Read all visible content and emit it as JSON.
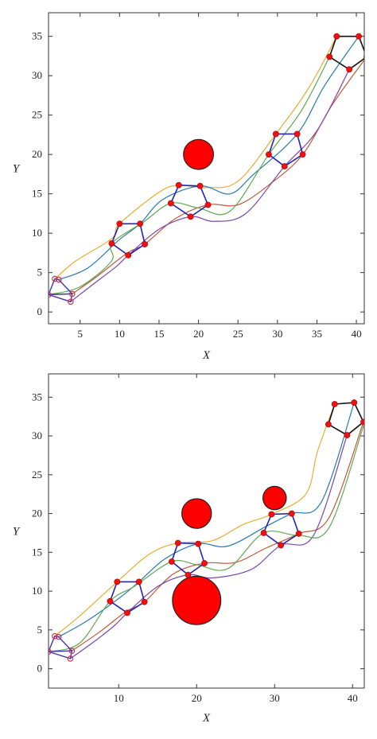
{
  "chart_data": [
    {
      "type": "line",
      "title": "",
      "xlabel": "X",
      "ylabel": "Y",
      "xlim": [
        1,
        41
      ],
      "ylim": [
        -1.5,
        38
      ],
      "x_ticks": [
        5,
        10,
        15,
        20,
        25,
        30,
        35,
        40
      ],
      "y_ticks": [
        0,
        5,
        10,
        15,
        20,
        25,
        30,
        35
      ],
      "grid": false,
      "obstacles": [
        {
          "cx": 20,
          "cy": 20,
          "r": 1.9
        }
      ],
      "start_positions": [
        [
          1.8,
          4.2
        ],
        [
          2.3,
          4.1
        ],
        [
          1,
          2.2
        ],
        [
          4,
          2.3
        ],
        [
          3.8,
          1.3
        ]
      ],
      "formations": [
        [
          [
            1.8,
            4.2
          ],
          [
            2.3,
            4.1
          ],
          [
            4,
            2.3
          ],
          [
            3.8,
            1.3
          ],
          [
            1,
            2.2
          ]
        ],
        [
          [
            10,
            11.2
          ],
          [
            12.6,
            11.2
          ],
          [
            13.2,
            8.6
          ],
          [
            11.1,
            7.2
          ],
          [
            9,
            8.7
          ]
        ],
        [
          [
            17.5,
            16.1
          ],
          [
            20.2,
            16
          ],
          [
            21.2,
            13.6
          ],
          [
            19,
            12.1
          ],
          [
            16.5,
            13.8
          ]
        ],
        [
          [
            29.8,
            22.6
          ],
          [
            32.5,
            22.6
          ],
          [
            33.2,
            20
          ],
          [
            30.9,
            18.5
          ],
          [
            28.9,
            20
          ]
        ],
        [
          [
            37.5,
            35
          ],
          [
            40.3,
            35
          ],
          [
            41.3,
            32.4
          ],
          [
            39.1,
            30.8
          ],
          [
            36.6,
            32.4
          ]
        ]
      ],
      "series": [
        {
          "color": "#e0b030",
          "values": [
            [
              1.8,
              4.2
            ],
            [
              4.5,
              6.5
            ],
            [
              9,
              9.3
            ],
            [
              10,
              11.2
            ],
            [
              15,
              15.2
            ],
            [
              17.5,
              16.1
            ],
            [
              21,
              15.8
            ],
            [
              25,
              16.6
            ],
            [
              29.8,
              22.6
            ],
            [
              34,
              28.5
            ],
            [
              37.5,
              35
            ]
          ]
        },
        {
          "color": "#2a7ab0",
          "values": [
            [
              2.3,
              4.1
            ],
            [
              6,
              5.6
            ],
            [
              10,
              9.2
            ],
            [
              12.6,
              11.2
            ],
            [
              15.5,
              14.3
            ],
            [
              20.2,
              16
            ],
            [
              24,
              15
            ],
            [
              27,
              17.5
            ],
            [
              32.5,
              22.6
            ],
            [
              36,
              28.8
            ],
            [
              40.3,
              35
            ]
          ]
        },
        {
          "color": "#c05a3a",
          "values": [
            [
              4,
              2.3
            ],
            [
              7,
              4.4
            ],
            [
              11,
              7.5
            ],
            [
              13.2,
              8.6
            ],
            [
              17,
              11.8
            ],
            [
              21.2,
              13.6
            ],
            [
              25,
              13.6
            ],
            [
              29,
              16.2
            ],
            [
              33.2,
              20
            ],
            [
              37,
              26.4
            ],
            [
              41.3,
              32.4
            ]
          ]
        },
        {
          "color": "#7a48a8",
          "values": [
            [
              3.8,
              1.3
            ],
            [
              6.5,
              3.4
            ],
            [
              9.5,
              5.7
            ],
            [
              11.1,
              7.2
            ],
            [
              15,
              10.5
            ],
            [
              19,
              12.1
            ],
            [
              22,
              11.5
            ],
            [
              26,
              12.5
            ],
            [
              30.9,
              18.5
            ],
            [
              35,
              23
            ],
            [
              39.1,
              30.8
            ]
          ]
        },
        {
          "color": "#60a850",
          "values": [
            [
              1,
              2.2
            ],
            [
              5,
              3.2
            ],
            [
              9,
              6.5
            ],
            [
              9,
              8.7
            ],
            [
              13,
              11.4
            ],
            [
              16.5,
              13.8
            ],
            [
              20,
              13.2
            ],
            [
              24,
              12.8
            ],
            [
              28.9,
              20
            ],
            [
              33,
              25.5
            ],
            [
              36.6,
              32.4
            ]
          ]
        }
      ]
    },
    {
      "type": "line",
      "title": "",
      "xlabel": "X",
      "ylabel": "Y",
      "xlim": [
        1,
        41.5
      ],
      "ylim": [
        -2.5,
        38
      ],
      "x_ticks": [
        10,
        20,
        30,
        40
      ],
      "y_ticks": [
        0,
        5,
        10,
        15,
        20,
        25,
        30,
        35
      ],
      "grid": false,
      "obstacles": [
        {
          "cx": 20,
          "cy": 20,
          "r": 1.9
        },
        {
          "cx": 30,
          "cy": 22,
          "r": 1.5
        },
        {
          "cx": 20,
          "cy": 8.8,
          "r": 3.1
        }
      ],
      "start_positions": [
        [
          1.8,
          4.2
        ],
        [
          2.3,
          4.1
        ],
        [
          1,
          2.2
        ],
        [
          4,
          2.3
        ],
        [
          3.8,
          1.3
        ]
      ],
      "formations": [
        [
          [
            1.8,
            4.2
          ],
          [
            2.3,
            4.1
          ],
          [
            4,
            2.3
          ],
          [
            3.8,
            1.3
          ],
          [
            1,
            2.2
          ]
        ],
        [
          [
            9.8,
            11.2
          ],
          [
            12.6,
            11.2
          ],
          [
            13.3,
            8.6
          ],
          [
            11.1,
            7.2
          ],
          [
            8.9,
            8.7
          ]
        ],
        [
          [
            17.6,
            16.2
          ],
          [
            20.2,
            16.1
          ],
          [
            21,
            13.6
          ],
          [
            18.9,
            12.1
          ],
          [
            16.8,
            13.8
          ]
        ],
        [
          [
            29.6,
            19.9
          ],
          [
            32.2,
            20
          ],
          [
            33.1,
            17.4
          ],
          [
            30.8,
            15.9
          ],
          [
            28.6,
            17.5
          ]
        ],
        [
          [
            37.7,
            34.1
          ],
          [
            40.2,
            34.3
          ],
          [
            41.4,
            31.8
          ],
          [
            39.3,
            30.1
          ],
          [
            36.9,
            31.5
          ]
        ]
      ],
      "series": [
        {
          "color": "#e0b030",
          "values": [
            [
              1.8,
              4.2
            ],
            [
              5,
              6.8
            ],
            [
              9.8,
              11.2
            ],
            [
              14,
              14.8
            ],
            [
              17.6,
              16.2
            ],
            [
              22,
              16.5
            ],
            [
              26,
              18.6
            ],
            [
              29.6,
              19.9
            ],
            [
              34,
              22.5
            ],
            [
              35.5,
              28
            ],
            [
              37.7,
              34.1
            ]
          ]
        },
        {
          "color": "#2a7ab0",
          "values": [
            [
              2.3,
              4.1
            ],
            [
              6,
              6.2
            ],
            [
              10.2,
              9.2
            ],
            [
              12.6,
              11.2
            ],
            [
              16,
              14.2
            ],
            [
              20.2,
              16.1
            ],
            [
              24,
              15.8
            ],
            [
              29,
              18.4
            ],
            [
              32.2,
              20
            ],
            [
              36,
              21.5
            ],
            [
              40.2,
              34.3
            ]
          ]
        },
        {
          "color": "#c05a3a",
          "values": [
            [
              4,
              2.3
            ],
            [
              7.5,
              4.7
            ],
            [
              11,
              7.4
            ],
            [
              13.3,
              8.6
            ],
            [
              17,
              12.2
            ],
            [
              21,
              13.6
            ],
            [
              25,
              13.7
            ],
            [
              29,
              15.6
            ],
            [
              33.1,
              17.4
            ],
            [
              37,
              19.5
            ],
            [
              41.4,
              31.8
            ]
          ]
        },
        {
          "color": "#7a48a8",
          "values": [
            [
              3.8,
              1.3
            ],
            [
              7,
              3.6
            ],
            [
              9.5,
              5.6
            ],
            [
              11.1,
              7.2
            ],
            [
              15,
              10.6
            ],
            [
              18.9,
              12.1
            ],
            [
              22,
              11.7
            ],
            [
              27,
              12.8
            ],
            [
              30.8,
              15.9
            ],
            [
              35,
              17.2
            ],
            [
              39.3,
              30.1
            ]
          ]
        },
        {
          "color": "#60a850",
          "values": [
            [
              1,
              2.2
            ],
            [
              5,
              3.3
            ],
            [
              8.9,
              8.7
            ],
            [
              12,
              10.6
            ],
            [
              16.8,
              13.8
            ],
            [
              20,
              13.4
            ],
            [
              24,
              12.9
            ],
            [
              28.6,
              17.5
            ],
            [
              33,
              17.2
            ],
            [
              37,
              18.2
            ],
            [
              41.4,
              31.3
            ]
          ]
        }
      ]
    }
  ]
}
